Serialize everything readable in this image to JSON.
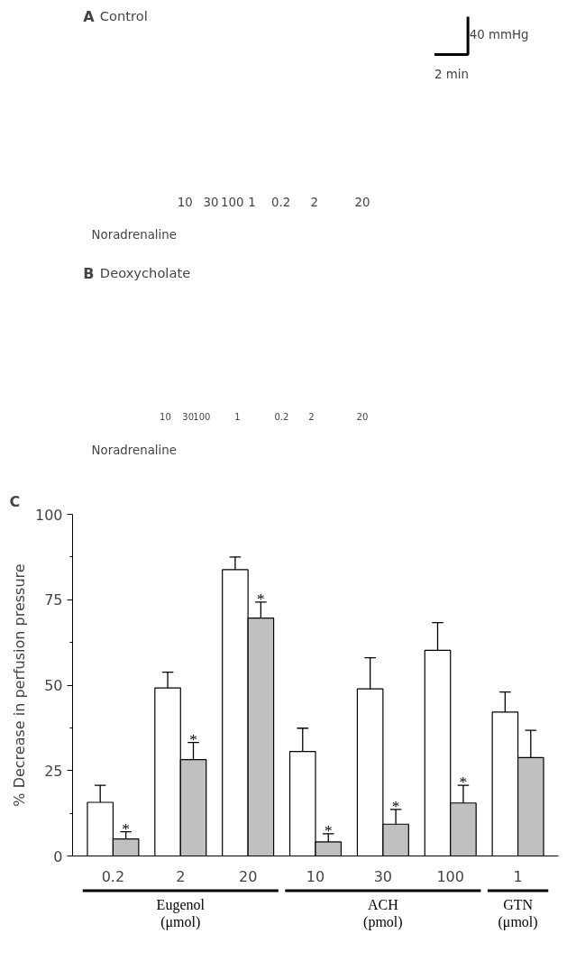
{
  "chart_data": [
    {
      "type": "other",
      "title": "A Control",
      "annotations": [
        "40 mmHg",
        "2 min",
        "10",
        "30",
        "100",
        "1",
        "0.2",
        "2",
        "20",
        "Noradrenaline"
      ]
    },
    {
      "type": "other",
      "title": "B Deoxycholate",
      "annotations": [
        "10",
        "30",
        "100",
        "1",
        "0.2",
        "2",
        "20",
        "Noradrenaline"
      ]
    },
    {
      "type": "bar",
      "title": "C",
      "ylabel": "% Decrease in perfusion pressure",
      "categories": [
        "0.2",
        "2",
        "20",
        "10",
        "30",
        "100",
        "1"
      ],
      "series": [
        {
          "color": "#ffffff",
          "values": [
            15.7,
            49.2,
            83.8,
            30.6,
            48.9,
            60.2,
            42.1
          ],
          "errors": [
            [
              15.7,
              20.7
            ],
            [
              49.2,
              53.8
            ],
            [
              83.8,
              87.5
            ],
            [
              30.6,
              37.4
            ],
            [
              48.9,
              58.0
            ],
            [
              60.2,
              68.3
            ],
            [
              42.1,
              48.0
            ]
          ]
        },
        {
          "color": "#c0c0c0",
          "values": [
            5.0,
            28.2,
            69.6,
            4.1,
            9.3,
            15.5,
            28.8
          ],
          "errors": [
            [
              5.0,
              7.1
            ],
            [
              28.2,
              33.2
            ],
            [
              69.6,
              74.3
            ],
            [
              4.1,
              6.5
            ],
            [
              9.3,
              13.6
            ],
            [
              15.5,
              20.7
            ],
            [
              28.8,
              36.8
            ]
          ]
        }
      ],
      "ylim": [
        0,
        100
      ],
      "yticks": [
        0,
        25,
        50,
        75,
        100
      ],
      "grid": false,
      "annotations": [
        {
          "text": "*",
          "x": "0.2",
          "y": 7.1
        },
        {
          "text": "*",
          "x": "2",
          "y": 33.2
        },
        {
          "text": "*",
          "x": "20",
          "y": 74.3
        },
        {
          "text": "*",
          "x": "10",
          "y": 6.5
        },
        {
          "text": "*",
          "x": "30",
          "y": 13.6
        },
        {
          "text": "*",
          "x": "100",
          "y": 20.7
        },
        "Eugenol\n(μmol)",
        "ACH\n(pmol)",
        "GTN\n(μmol)"
      ]
    }
  ]
}
